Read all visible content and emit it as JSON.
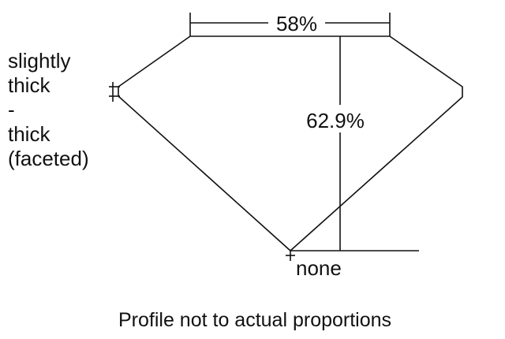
{
  "girdle": {
    "lines": [
      "slightly",
      "thick",
      "-",
      "thick",
      "(faceted)"
    ]
  },
  "table_label": "58%",
  "depth_label": "62.9%",
  "culet_label": "none",
  "caption": "Profile not to actual proportions",
  "colors": {
    "line": "#111111",
    "background": "#ffffff"
  }
}
